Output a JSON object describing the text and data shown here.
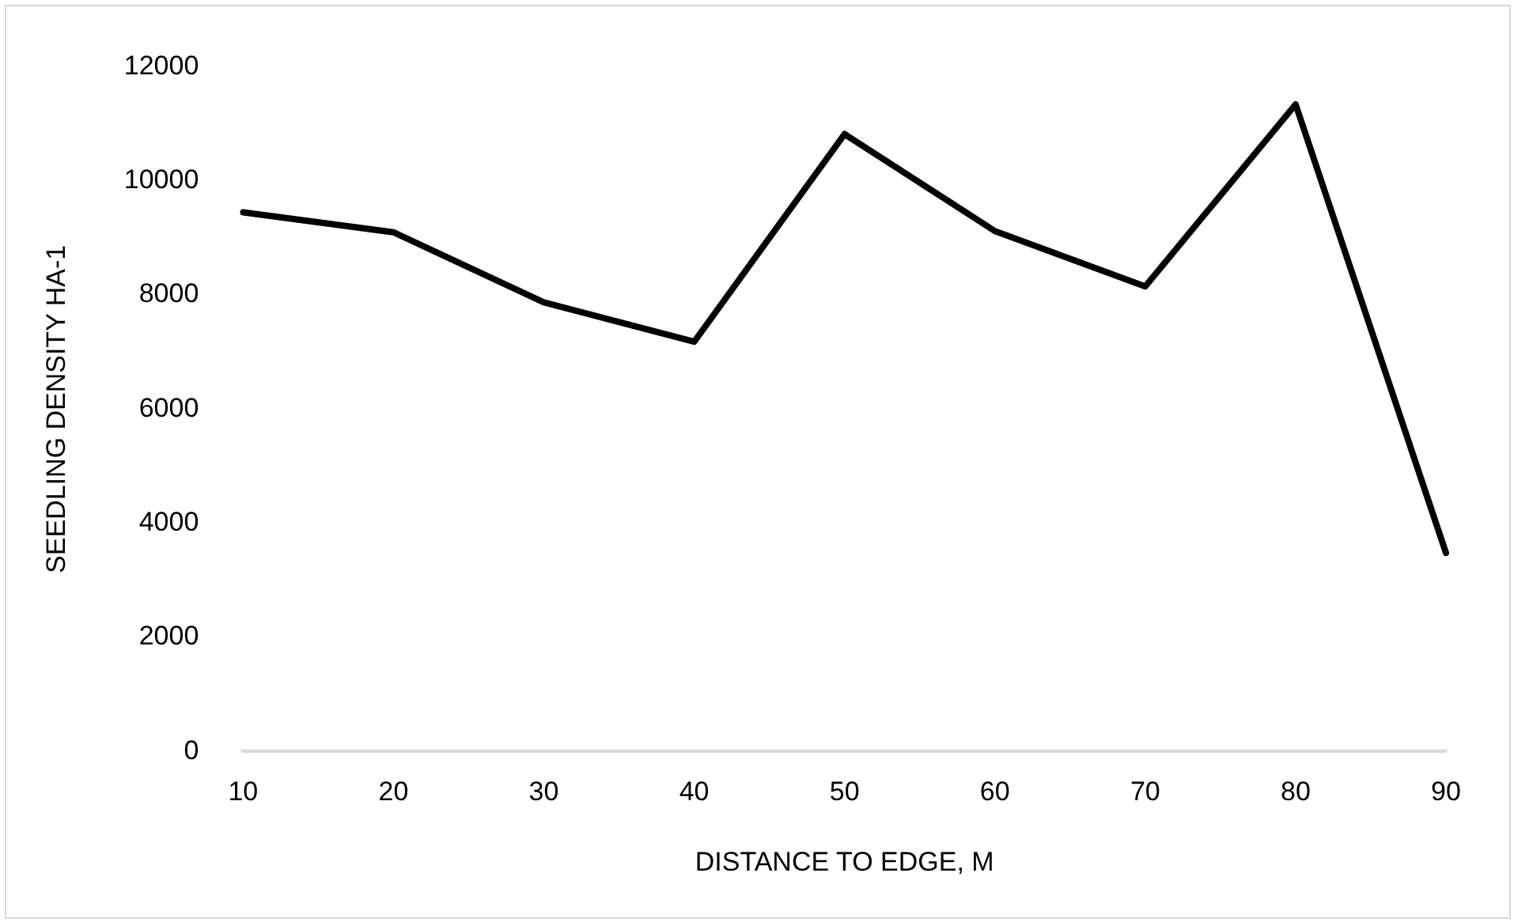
{
  "chart_data": {
    "type": "line",
    "xlabel": "DISTANCE TO EDGE, M",
    "ylabel": "SEEDLING DENSITY HA-1",
    "categories": [
      "10",
      "20",
      "30",
      "40",
      "50",
      "60",
      "70",
      "80",
      "90"
    ],
    "series": [
      {
        "color": "#000000",
        "values": [
          9450,
          9100,
          7870,
          7180,
          10820,
          9120,
          8150,
          11340,
          3480
        ]
      }
    ],
    "ylim": [
      0,
      12000
    ],
    "yticks": [
      0,
      2000,
      4000,
      6000,
      8000,
      10000,
      12000
    ],
    "grid": false,
    "legend": false,
    "marker": "none",
    "line_style": "solid"
  }
}
